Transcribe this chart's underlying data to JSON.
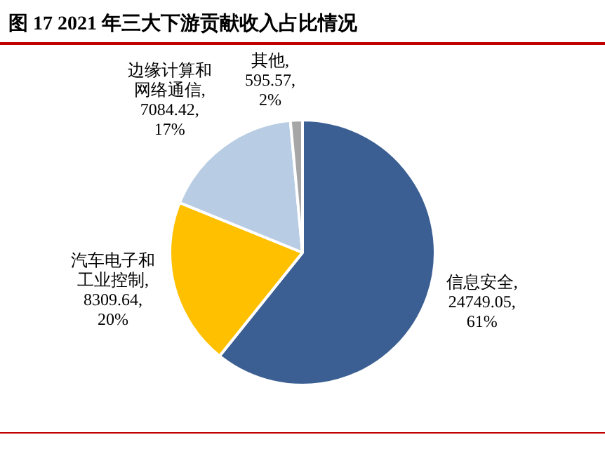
{
  "chart_data": {
    "type": "pie",
    "title": "图 17 2021 年三大下游贡献收入占比情况",
    "categories": [
      "信息安全",
      "汽车电子和工业控制",
      "边缘计算和网络通信",
      "其他"
    ],
    "values": [
      24749.05,
      8309.64,
      7084.42,
      595.57
    ],
    "colors": [
      "#3b5f93",
      "#ffc000",
      "#b8cce4",
      "#a6a6a6"
    ],
    "value_labels": [
      ", 24749.05, 61%",
      ", 8309.64, 20%",
      ", 7084.42, 17%",
      ", 595.57, 2%"
    ],
    "legend": false
  }
}
